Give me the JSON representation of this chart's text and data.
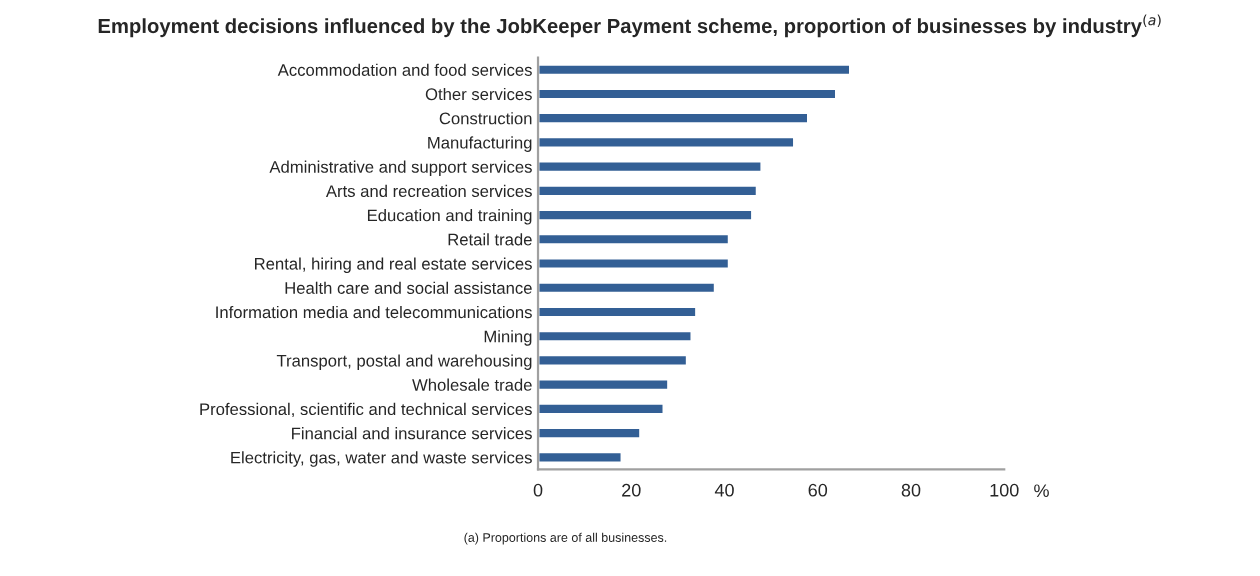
{
  "chart_data": {
    "type": "bar",
    "orientation": "horizontal",
    "title": "Employment decisions influenced by the JobKeeper Payment scheme, proportion of businesses by industry$^{(a)}$",
    "xlabel": "%",
    "categories": [
      "Accommodation and food services",
      "Other services",
      "Construction",
      "Manufacturing",
      "Administrative and support services",
      "Arts and recreation services",
      "Education and training",
      "Retail trade",
      "Rental, hiring and real estate services",
      "Health care and social assistance",
      "Information media and telecommunications",
      "Mining",
      "Transport, postal and warehousing",
      "Wholesale trade",
      "Professional, scientific and technical services",
      "Financial and insurance services",
      "Electricity, gas, water and waste services"
    ],
    "values": [
      67,
      64,
      58,
      55,
      48,
      47,
      46,
      41,
      41,
      38,
      34,
      33,
      32,
      28,
      27,
      22,
      18
    ],
    "color": "#335f95",
    "xlim": [
      0,
      100
    ],
    "xticks": [
      0,
      20,
      40,
      60,
      80,
      100
    ],
    "grid": false,
    "legend": false,
    "annotations": [
      "(a) Proportions are of all businesses."
    ]
  }
}
